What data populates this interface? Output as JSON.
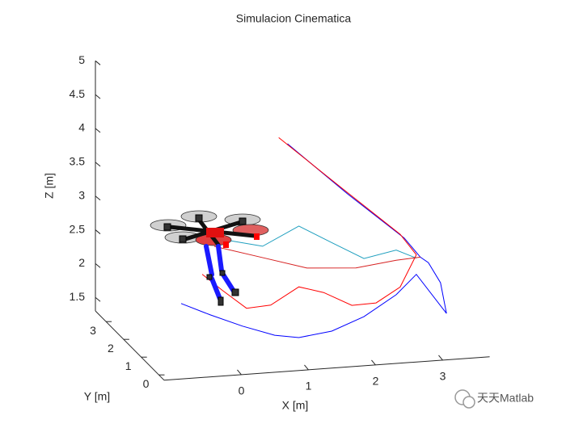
{
  "chart_data": {
    "type": "line3d",
    "title": "Simulacion Cinematica",
    "xlabel": "X [m]",
    "ylabel": "Y [m]",
    "zlabel": "Z [m]",
    "xlim": [
      -1.15,
      3.7
    ],
    "ylim": [
      -0.3,
      3.6
    ],
    "zlim": [
      1.3,
      5
    ],
    "xticks": [
      0,
      1,
      2,
      3
    ],
    "yticks": [
      0,
      1,
      2,
      3
    ],
    "zticks": [
      1.5,
      2,
      2.5,
      3,
      3.5,
      4,
      4.5,
      5
    ],
    "series": [
      {
        "color": "#0000ff",
        "x": [
          1.16,
          2.06,
          2.9,
          3.14,
          3.26,
          3.44,
          3.53,
          3.08,
          2.78,
          2.3,
          1.82,
          1.33,
          0.97,
          0.49,
          0.01,
          -0.425
        ],
        "y": [
          1.5,
          1.5,
          1.5,
          1.5,
          1.5,
          1.5,
          1.5,
          1.5,
          1.5,
          1.5,
          1.5,
          1.5,
          1.5,
          1.5,
          1.5,
          1.5
        ],
        "z": [
          4.16,
          3.35,
          2.64,
          2.34,
          2.25,
          1.94,
          1.48,
          2.09,
          1.81,
          1.52,
          1.34,
          1.28,
          1.34,
          1.51,
          1.71,
          1.91
        ]
      },
      {
        "color": "#ff0000",
        "x": [
          1.03,
          2.0,
          2.84,
          3.08,
          2.84,
          2.48,
          2.12,
          1.7,
          1.33,
          0.91,
          0.55,
          0.19,
          -0.11
        ],
        "y": [
          1.5,
          1.5,
          1.5,
          1.5,
          1.5,
          1.5,
          1.5,
          1.5,
          1.5,
          1.5,
          1.5,
          1.5,
          1.5
        ],
        "z": [
          4.26,
          3.42,
          2.7,
          2.38,
          1.92,
          1.71,
          1.7,
          1.92,
          2.03,
          1.79,
          1.77,
          2.06,
          2.32
        ]
      },
      {
        "color": "#1f9fbf",
        "x": [
          0.25,
          0.79,
          1.33,
          1.82,
          2.3,
          2.78,
          3.08
        ],
        "y": [
          1.5,
          1.5,
          1.5,
          1.5,
          1.5,
          1.5,
          1.5
        ],
        "z": [
          2.8,
          2.67,
          2.93,
          2.65,
          2.38,
          2.47,
          2.33
        ]
      },
      {
        "color": "#d62020",
        "x": [
          0.07,
          0.73,
          1.45,
          2.18,
          2.78,
          3.14
        ],
        "y": [
          1.5,
          1.5,
          1.5,
          1.5,
          1.5,
          1.5
        ],
        "z": [
          2.72,
          2.52,
          2.3,
          2.25,
          2.32,
          2.34
        ]
      }
    ]
  },
  "watermark": "天天Matlab"
}
